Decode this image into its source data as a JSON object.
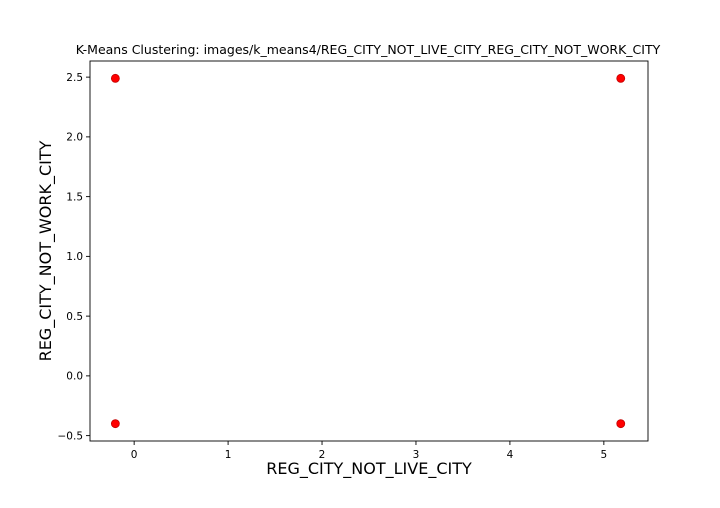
{
  "chart_data": {
    "type": "scatter",
    "title": "K-Means Clustering: images/k_means4/REG_CITY_NOT_LIVE_CITY_REG_CITY_NOT_WORK_CITY",
    "xlabel": "REG_CITY_NOT_LIVE_CITY",
    "ylabel": "REG_CITY_NOT_WORK_CITY",
    "xlim": [
      -0.47,
      5.47
    ],
    "ylim": [
      -0.545,
      2.635
    ],
    "xticks": [
      0,
      1,
      2,
      3,
      4,
      5
    ],
    "yticks": [
      -0.5,
      0.0,
      0.5,
      1.0,
      1.5,
      2.0,
      2.5
    ],
    "ytick_labels": [
      "−0.5",
      "0.0",
      "0.5",
      "1.0",
      "1.5",
      "2.0",
      "2.5"
    ],
    "grid": false,
    "point_color": "#ff0000",
    "points": [
      {
        "x": -0.2,
        "y": 2.49
      },
      {
        "x": 5.18,
        "y": 2.49
      },
      {
        "x": -0.2,
        "y": -0.4
      },
      {
        "x": 5.18,
        "y": -0.4
      }
    ]
  }
}
